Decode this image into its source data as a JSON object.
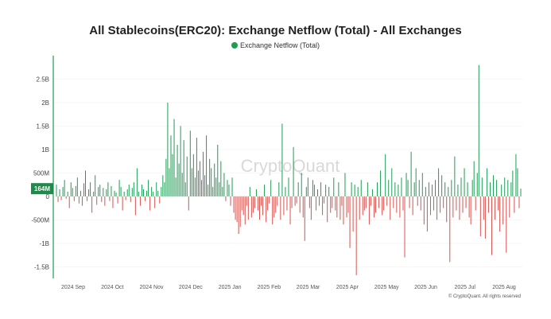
{
  "chart_data": {
    "type": "bar",
    "title": "All Stablecoins(ERC20): Exchange Netflow (Total) - All Exchanges",
    "series_name": "Exchange Netflow (Total)",
    "colors": {
      "positive": "#1f9d55",
      "negative": "#d9534f",
      "label_bg": "#1f8a4c",
      "series_line": "#1f9d55"
    },
    "y_ticks": [
      {
        "value": 2.5,
        "label": "2.5B"
      },
      {
        "value": 2.0,
        "label": "2B"
      },
      {
        "value": 1.5,
        "label": "1.5B"
      },
      {
        "value": 1.0,
        "label": "1B"
      },
      {
        "value": 0.5,
        "label": "500M"
      },
      {
        "value": 0,
        "label": "0"
      },
      {
        "value": -0.5,
        "label": "-500M"
      },
      {
        "value": -1.0,
        "label": "-1B"
      },
      {
        "value": -1.5,
        "label": "-1.5B"
      }
    ],
    "ylim": [
      -1.75,
      3.0
    ],
    "y_unit": "billions USD",
    "x_ticks": [
      "2024 Sep",
      "2024 Oct",
      "2024 Nov",
      "2024 Dec",
      "2025 Jan",
      "2025 Feb",
      "2025 Mar",
      "2025 Apr",
      "2025 May",
      "2025 Jun",
      "2025 Jul",
      "2025 Aug"
    ],
    "latest_value": {
      "value": 0.164,
      "label": "164M"
    },
    "watermark": "CryptoQuant",
    "copyright": "© CryptoQuant. All rights reserved",
    "values": [
      0.25,
      -0.12,
      0.15,
      -0.08,
      0.2,
      0.35,
      -0.05,
      0.1,
      -0.25,
      0.3,
      0.18,
      -0.1,
      0.22,
      0.4,
      -0.15,
      0.12,
      -0.2,
      0.28,
      0.55,
      -0.1,
      0.15,
      0.3,
      -0.35,
      0.1,
      0.45,
      -0.18,
      0.2,
      0.25,
      -0.12,
      0.18,
      -0.2,
      0.15,
      0.3,
      -0.1,
      0.22,
      -0.25,
      0.12,
      0.08,
      -0.15,
      0.35,
      0.2,
      -0.3,
      0.1,
      -0.08,
      0.15,
      0.25,
      -0.12,
      0.18,
      0.3,
      -0.4,
      0.6,
      0.1,
      -0.2,
      0.25,
      0.15,
      -0.1,
      0.12,
      0.35,
      -0.3,
      0.2,
      0.1,
      -0.25,
      0.3,
      0.12,
      -0.15,
      0.2,
      0.45,
      0.3,
      0.8,
      2.0,
      0.6,
      1.3,
      0.9,
      1.65,
      0.4,
      1.1,
      0.7,
      1.5,
      0.5,
      1.2,
      0.3,
      0.85,
      -0.3,
      1.4,
      0.6,
      0.9,
      0.4,
      1.25,
      0.55,
      0.75,
      0.35,
      0.95,
      0.45,
      1.3,
      0.25,
      0.8,
      0.6,
      0.2,
      0.7,
      0.4,
      1.1,
      0.3,
      0.75,
      0.2,
      0.5,
      -0.1,
      0.35,
      0.25,
      -0.2,
      0.4,
      -0.35,
      -0.5,
      -0.55,
      -0.8,
      -0.65,
      -0.3,
      -0.4,
      -0.6,
      -0.2,
      -0.5,
      0.2,
      -0.45,
      -0.35,
      -0.25,
      0.15,
      -0.3,
      -0.5,
      -0.2,
      -0.4,
      0.25,
      -0.55,
      -0.3,
      -0.15,
      0.35,
      -0.6,
      -0.45,
      -0.35,
      -0.2,
      0.3,
      -0.5,
      1.55,
      -0.4,
      0.2,
      -0.3,
      0.4,
      -0.6,
      -0.25,
      1.05,
      -0.2,
      -0.15,
      0.3,
      -0.35,
      0.5,
      -0.45,
      -0.95,
      0.2,
      0.4,
      -0.25,
      -0.5,
      0.35,
      0.25,
      -0.3,
      0.15,
      -0.2,
      0.3,
      -0.4,
      -0.15,
      0.25,
      -0.55,
      0.2,
      -0.35,
      -0.25,
      0.4,
      -0.3,
      -0.45,
      0.3,
      -0.5,
      -0.2,
      -0.6,
      0.5,
      -0.45,
      -0.35,
      -1.1,
      0.3,
      -0.75,
      0.25,
      -1.68,
      0.2,
      -0.5,
      0.35,
      -0.4,
      -0.3,
      -0.25,
      0.3,
      -0.6,
      -0.2,
      0.15,
      -0.45,
      -0.35,
      0.3,
      -0.25,
      0.55,
      -0.4,
      -0.3,
      0.9,
      -0.2,
      0.35,
      -0.5,
      0.6,
      -0.25,
      0.3,
      -0.35,
      0.25,
      -0.45,
      0.4,
      -0.3,
      -1.3,
      0.5,
      0.35,
      -0.25,
      0.95,
      -0.4,
      0.3,
      0.6,
      -0.2,
      0.35,
      -0.3,
      0.5,
      -0.6,
      0.2,
      -0.75,
      0.3,
      -0.4,
      0.25,
      -0.3,
      0.35,
      -0.5,
      0.6,
      -0.35,
      0.45,
      -0.25,
      0.3,
      -0.55,
      0.2,
      -1.4,
      0.35,
      -0.45,
      0.85,
      -0.3,
      0.25,
      -0.5,
      0.4,
      -0.35,
      0.6,
      -0.25,
      0.3,
      -0.45,
      -0.6,
      0.35,
      0.75,
      -0.3,
      0.5,
      2.8,
      -0.85,
      0.4,
      -0.5,
      -0.9,
      0.6,
      -0.35,
      0.3,
      -1.25,
      0.45,
      -0.5,
      0.35,
      -0.3,
      -0.75,
      0.25,
      -0.6,
      0.4,
      -1.2,
      0.35,
      -0.45,
      0.3,
      0.55,
      -0.35,
      0.9,
      0.6,
      -0.25,
      0.164
    ]
  }
}
